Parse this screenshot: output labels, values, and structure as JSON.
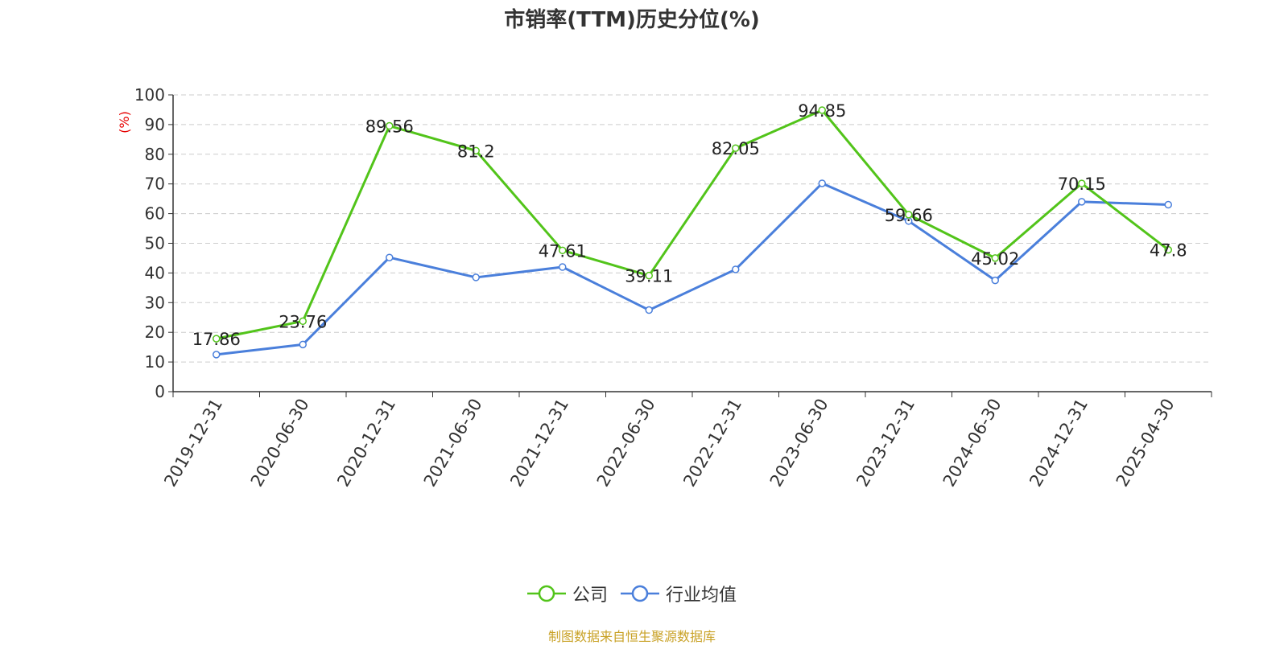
{
  "chart_data": {
    "type": "line",
    "title": "市销率(TTM)历史分位(%)",
    "ylabel": "(%)",
    "xlabel": "",
    "ylim": [
      0,
      100
    ],
    "yticks": [
      0,
      10,
      20,
      30,
      40,
      50,
      60,
      70,
      80,
      90,
      100
    ],
    "grid": true,
    "legend_position": "bottom-center",
    "categories": [
      "2019-12-31",
      "2020-06-30",
      "2020-12-31",
      "2021-06-30",
      "2021-12-31",
      "2022-06-30",
      "2022-12-31",
      "2023-06-30",
      "2023-12-31",
      "2024-06-30",
      "2024-12-31",
      "2025-04-30"
    ],
    "series": [
      {
        "name": "公司",
        "color": "#52c41a",
        "values": [
          17.86,
          23.76,
          89.56,
          81.2,
          47.61,
          39.11,
          82.05,
          94.85,
          59.66,
          45.02,
          70.15,
          47.8
        ],
        "data_labels": [
          "17.86",
          "23.76",
          "89.56",
          "81.2",
          "47.61",
          "39.11",
          "82.05",
          "94.85",
          "59.66",
          "45.02",
          "70.15",
          "47.8"
        ]
      },
      {
        "name": "行业均值",
        "color": "#4a7fdb",
        "values": [
          12.5,
          15.9,
          45.2,
          38.5,
          42.0,
          27.5,
          41.2,
          70.2,
          57.5,
          37.5,
          64.0,
          63.0
        ]
      }
    ]
  },
  "footer": {
    "source": "制图数据来自恒生聚源数据库"
  }
}
